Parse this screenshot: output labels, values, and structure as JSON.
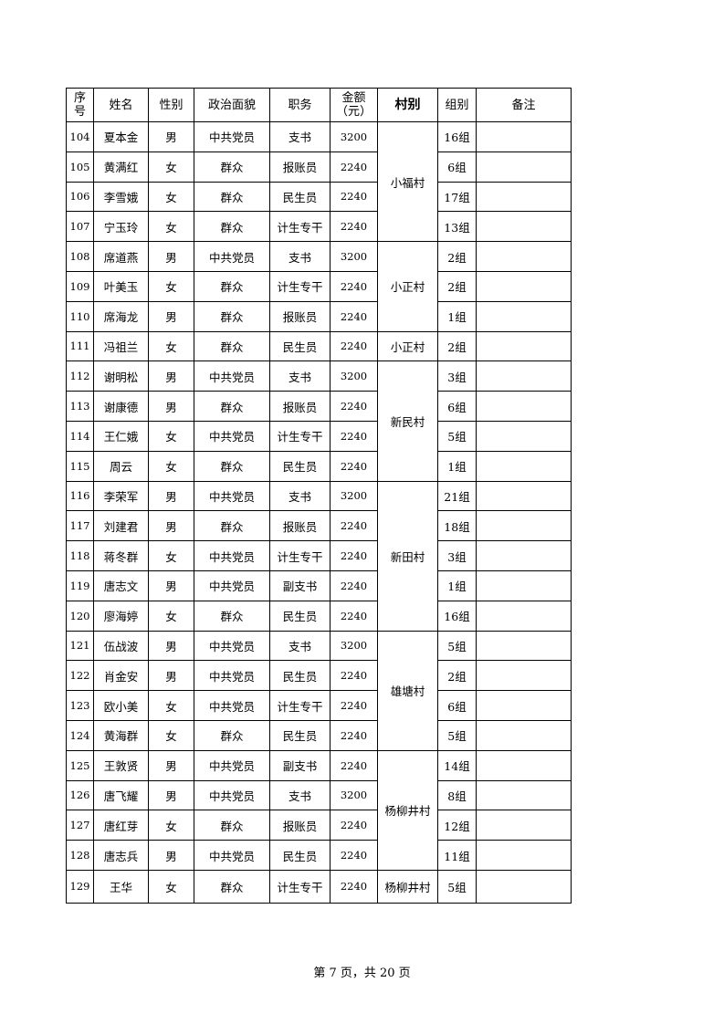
{
  "headers": [
    "序\n号",
    "姓名",
    "性别",
    "政治面貌",
    "职务",
    "金额\n（元）",
    "村别",
    "组别",
    "备注"
  ],
  "rows": [
    {
      "no": "104",
      "name": "夏本金",
      "gender": "男",
      "politics": "中共党员",
      "duty": "支书",
      "amount": "3200",
      "group": "16组",
      "note": ""
    },
    {
      "no": "105",
      "name": "黄满红",
      "gender": "女",
      "politics": "群众",
      "duty": "报账员",
      "amount": "2240",
      "group": "6组",
      "note": ""
    },
    {
      "no": "106",
      "name": "李雪娥",
      "gender": "女",
      "politics": "群众",
      "duty": "民生员",
      "amount": "2240",
      "group": "17组",
      "note": ""
    },
    {
      "no": "107",
      "name": "宁玉玲",
      "gender": "女",
      "politics": "群众",
      "duty": "计生专干",
      "amount": "2240",
      "group": "13组",
      "note": ""
    },
    {
      "no": "108",
      "name": "席道燕",
      "gender": "男",
      "politics": "中共党员",
      "duty": "支书",
      "amount": "3200",
      "group": "2组",
      "note": ""
    },
    {
      "no": "109",
      "name": "叶美玉",
      "gender": "女",
      "politics": "群众",
      "duty": "计生专干",
      "amount": "2240",
      "group": "2组",
      "note": ""
    },
    {
      "no": "110",
      "name": "席海龙",
      "gender": "男",
      "politics": "群众",
      "duty": "报账员",
      "amount": "2240",
      "group": "1组",
      "note": ""
    },
    {
      "no": "111",
      "name": "冯祖兰",
      "gender": "女",
      "politics": "群众",
      "duty": "民生员",
      "amount": "2240",
      "group": "2组",
      "note": ""
    },
    {
      "no": "112",
      "name": "谢明松",
      "gender": "男",
      "politics": "中共党员",
      "duty": "支书",
      "amount": "3200",
      "group": "3组",
      "note": ""
    },
    {
      "no": "113",
      "name": "谢康德",
      "gender": "男",
      "politics": "群众",
      "duty": "报账员",
      "amount": "2240",
      "group": "6组",
      "note": ""
    },
    {
      "no": "114",
      "name": "王仁娥",
      "gender": "女",
      "politics": "中共党员",
      "duty": "计生专干",
      "amount": "2240",
      "group": "5组",
      "note": ""
    },
    {
      "no": "115",
      "name": "周云",
      "gender": "女",
      "politics": "群众",
      "duty": "民生员",
      "amount": "2240",
      "group": "1组",
      "note": ""
    },
    {
      "no": "116",
      "name": "李荣军",
      "gender": "男",
      "politics": "中共党员",
      "duty": "支书",
      "amount": "3200",
      "group": "21组",
      "note": ""
    },
    {
      "no": "117",
      "name": "刘建君",
      "gender": "男",
      "politics": "群众",
      "duty": "报账员",
      "amount": "2240",
      "group": "18组",
      "note": ""
    },
    {
      "no": "118",
      "name": "蒋冬群",
      "gender": "女",
      "politics": "中共党员",
      "duty": "计生专干",
      "amount": "2240",
      "group": "3组",
      "note": ""
    },
    {
      "no": "119",
      "name": "唐志文",
      "gender": "男",
      "politics": "中共党员",
      "duty": "副支书",
      "amount": "2240",
      "group": "1组",
      "note": ""
    },
    {
      "no": "120",
      "name": "廖海婷",
      "gender": "女",
      "politics": "群众",
      "duty": "民生员",
      "amount": "2240",
      "group": "16组",
      "note": ""
    },
    {
      "no": "121",
      "name": "伍战波",
      "gender": "男",
      "politics": "中共党员",
      "duty": "支书",
      "amount": "3200",
      "group": "5组",
      "note": ""
    },
    {
      "no": "122",
      "name": "肖金安",
      "gender": "男",
      "politics": "中共党员",
      "duty": "民生员",
      "amount": "2240",
      "group": "2组",
      "note": ""
    },
    {
      "no": "123",
      "name": "欧小美",
      "gender": "女",
      "politics": "中共党员",
      "duty": "计生专干",
      "amount": "2240",
      "group": "6组",
      "note": ""
    },
    {
      "no": "124",
      "name": "黄海群",
      "gender": "女",
      "politics": "群众",
      "duty": "民生员",
      "amount": "2240",
      "group": "5组",
      "note": ""
    },
    {
      "no": "125",
      "name": "王敦贤",
      "gender": "男",
      "politics": "中共党员",
      "duty": "副支书",
      "amount": "2240",
      "group": "14组",
      "note": ""
    },
    {
      "no": "126",
      "name": "唐飞耀",
      "gender": "男",
      "politics": "中共党员",
      "duty": "支书",
      "amount": "3200",
      "group": "8组",
      "note": ""
    },
    {
      "no": "127",
      "name": "唐红芽",
      "gender": "女",
      "politics": "群众",
      "duty": "报账员",
      "amount": "2240",
      "group": "12组",
      "note": ""
    },
    {
      "no": "128",
      "name": "唐志兵",
      "gender": "男",
      "politics": "中共党员",
      "duty": "民生员",
      "amount": "2240",
      "group": "11组",
      "note": ""
    },
    {
      "no": "129",
      "name": "王华",
      "gender": "女",
      "politics": "群众",
      "duty": "计生专干",
      "amount": "2240",
      "group": "5组",
      "note": ""
    }
  ],
  "villages": [
    {
      "name": "小福村",
      "row_count": 4
    },
    {
      "name": "小正村",
      "row_count": 3
    },
    {
      "name": "小正村",
      "row_count": 1
    },
    {
      "name": "新民村",
      "row_count": 4
    },
    {
      "name": "新田村",
      "row_count": 5
    },
    {
      "name": "雄塘村",
      "row_count": 4
    },
    {
      "name": "杨柳井村",
      "row_count": 4
    },
    {
      "name": "杨柳井村",
      "row_count": 1
    }
  ],
  "footer": "第 7 页，共 20 页"
}
